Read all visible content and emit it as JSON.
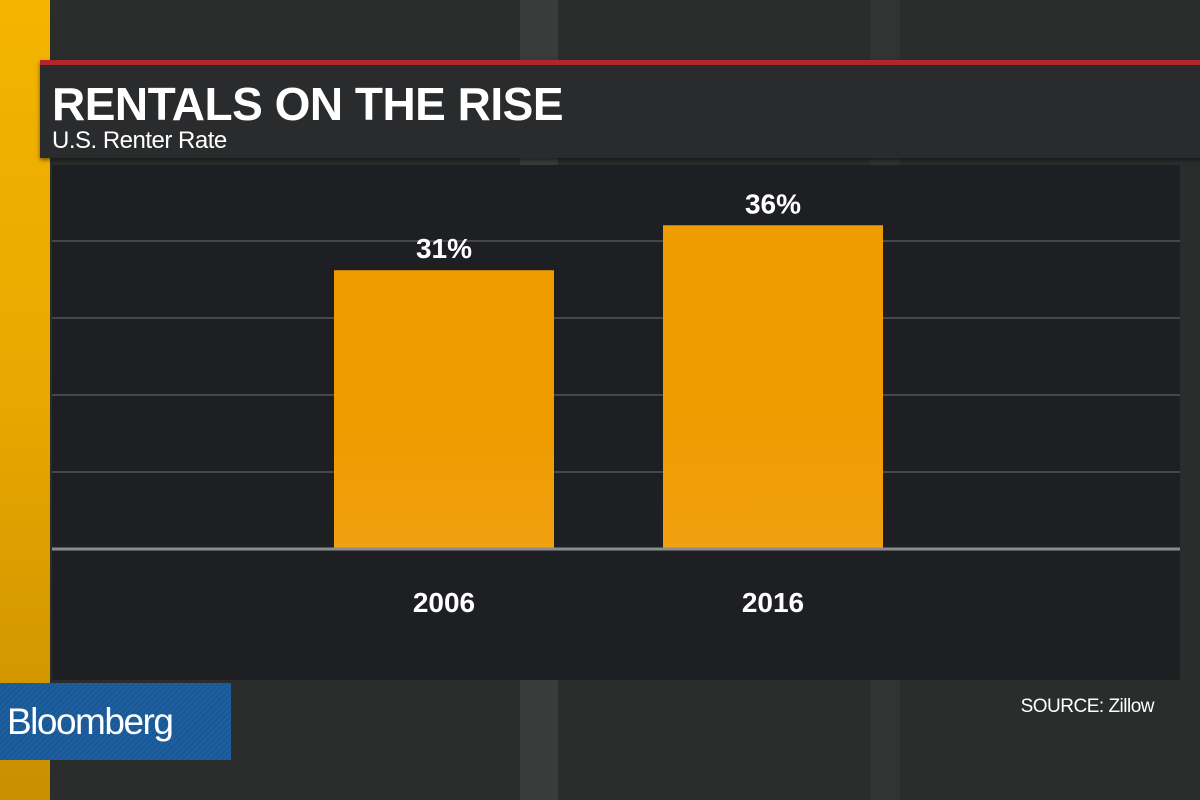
{
  "header": {
    "title": "RENTALS ON THE RISE",
    "subtitle": "U.S. Renter Rate"
  },
  "footer": {
    "logo": "Bloomberg",
    "source": "SOURCE: Zillow"
  },
  "colors": {
    "bar": "#ee9c00",
    "accent_red": "#b0262b",
    "brand_blue": "#1d5fa0"
  },
  "chart_data": {
    "type": "bar",
    "title": "RENTALS ON THE RISE",
    "subtitle": "U.S. Renter Rate",
    "categories": [
      "2006",
      "2016"
    ],
    "values": [
      31,
      36
    ],
    "value_labels": [
      "31%",
      "36%"
    ],
    "xlabel": "",
    "ylabel": "",
    "ylim": [
      0,
      42.7
    ],
    "grid": true,
    "source": "SOURCE: Zillow"
  }
}
